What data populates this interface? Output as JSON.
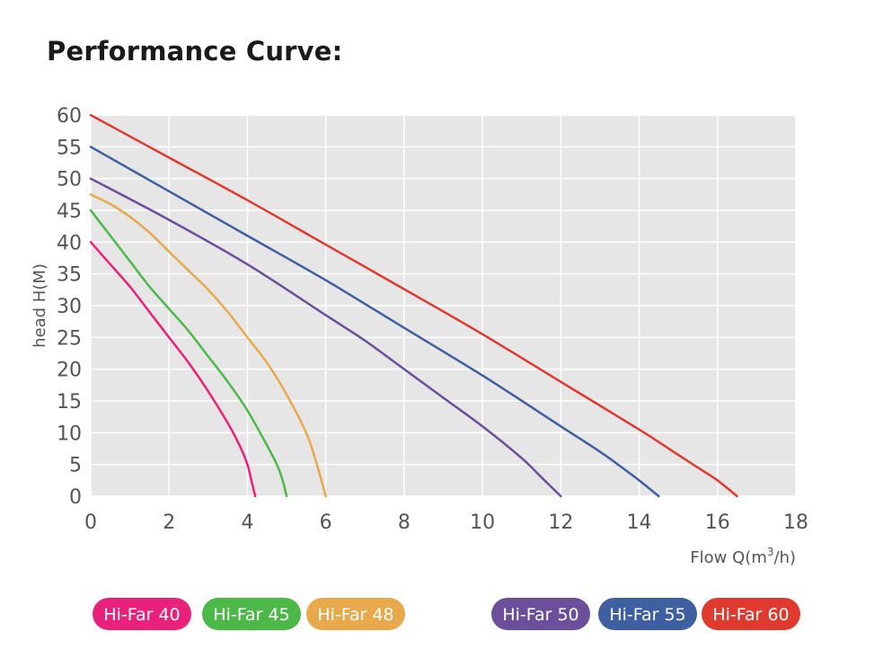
{
  "chart_data": {
    "type": "line",
    "title": "Performance Curve:",
    "xlabel_prefix": "Flow Q(m",
    "xlabel_sup": "3",
    "xlabel_suffix": "/h)",
    "ylabel": "head H(M)",
    "xlim": [
      0,
      18
    ],
    "ylim": [
      0,
      60
    ],
    "x_ticks": [
      0,
      2,
      4,
      6,
      8,
      10,
      12,
      14,
      16,
      18
    ],
    "y_ticks": [
      0,
      5,
      10,
      15,
      20,
      25,
      30,
      35,
      40,
      45,
      50,
      55,
      60
    ],
    "grid": true,
    "legend_position": "bottom",
    "series": [
      {
        "name": "Hi-Far 40",
        "color": "#e8217a",
        "x": [
          0,
          0.5,
          1,
          1.5,
          2,
          2.5,
          3,
          3.5,
          3.8,
          4.0,
          4.1,
          4.2
        ],
        "y": [
          40,
          36.5,
          33,
          29,
          25,
          21,
          16.5,
          11.5,
          8,
          5,
          2.5,
          0
        ]
      },
      {
        "name": "Hi-Far 45",
        "color": "#4cb848",
        "x": [
          0,
          0.5,
          1,
          1.5,
          2,
          2.5,
          3,
          3.5,
          4,
          4.5,
          4.75,
          4.9,
          5.0
        ],
        "y": [
          45,
          41,
          37,
          33,
          29.5,
          26,
          22,
          18,
          13.5,
          8,
          5,
          2.5,
          0
        ]
      },
      {
        "name": "Hi-Far 48",
        "color": "#e8a84c",
        "x": [
          0,
          0.5,
          1,
          1.5,
          2,
          2.5,
          3,
          3.5,
          4,
          4.5,
          5,
          5.5,
          5.75,
          6.0
        ],
        "y": [
          47.5,
          46,
          44,
          41.5,
          38.5,
          35.5,
          32.5,
          29,
          25,
          21,
          16,
          10,
          5.5,
          0
        ]
      },
      {
        "name": "Hi-Far 50",
        "color": "#6b4f9a",
        "x": [
          0,
          2,
          4,
          6,
          7,
          8,
          9,
          10,
          11,
          11.5,
          12.0
        ],
        "y": [
          50,
          43.5,
          36.5,
          28.5,
          24.5,
          20,
          15.5,
          11,
          6,
          3,
          0
        ]
      },
      {
        "name": "Hi-Far 55",
        "color": "#3e5fa0",
        "x": [
          0,
          2,
          4,
          6,
          8,
          10,
          12,
          13,
          13.5,
          14,
          14.5
        ],
        "y": [
          55,
          48,
          41,
          34,
          26.5,
          19,
          11,
          7,
          4.8,
          2.5,
          0
        ]
      },
      {
        "name": "Hi-Far 60",
        "color": "#de3a2f",
        "x": [
          0,
          2,
          4,
          6,
          8,
          10,
          12,
          14,
          15,
          15.5,
          16,
          16.5
        ],
        "y": [
          60,
          53.3,
          46.6,
          39.6,
          32.6,
          25.5,
          18,
          10.5,
          6.5,
          4.5,
          2.5,
          0
        ]
      }
    ]
  }
}
